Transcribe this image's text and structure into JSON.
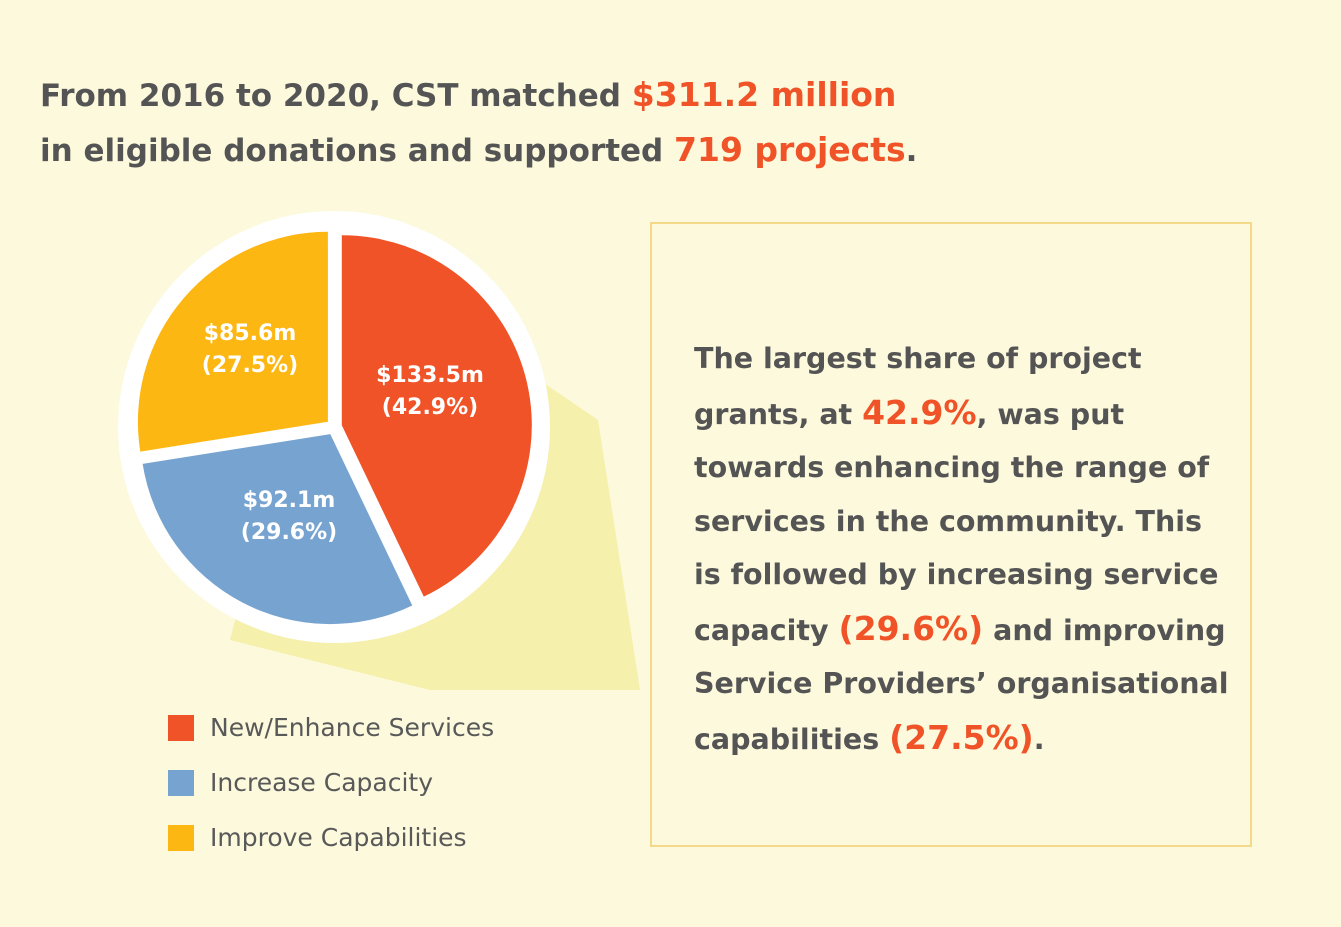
{
  "headline": {
    "part1": "From 2016 to 2020, CST matched ",
    "amount": "$311.2 million",
    "part2": "in eligible donations and supported ",
    "projects": "719 projects",
    "part3": "."
  },
  "chart_data": {
    "type": "pie",
    "slices": [
      {
        "name": "New/Enhance Services",
        "value": 133.5,
        "percent": 42.9,
        "label": "$133.5m",
        "pct_label": "(42.9%)",
        "color": "#ef5327"
      },
      {
        "name": "Increase Capacity",
        "value": 92.1,
        "percent": 29.6,
        "label": "$92.1m",
        "pct_label": "(29.6%)",
        "color": "#76a3d0"
      },
      {
        "name": "Improve Capabilities",
        "value": 85.6,
        "percent": 27.5,
        "label": "$85.6m",
        "pct_label": "(27.5%)",
        "color": "#fdb713"
      }
    ],
    "legend_placement": "bottom-left"
  },
  "info": {
    "t1": "The largest share of project grants, at ",
    "p1": "42.9%",
    "t2": ", was put towards enhancing the range of services in the community. This is followed by increasing service capacity ",
    "p2": "(29.6%)",
    "t3": " and improving Service Providers’ organisational capabilities ",
    "p3": "(27.5%)",
    "t4": "."
  }
}
